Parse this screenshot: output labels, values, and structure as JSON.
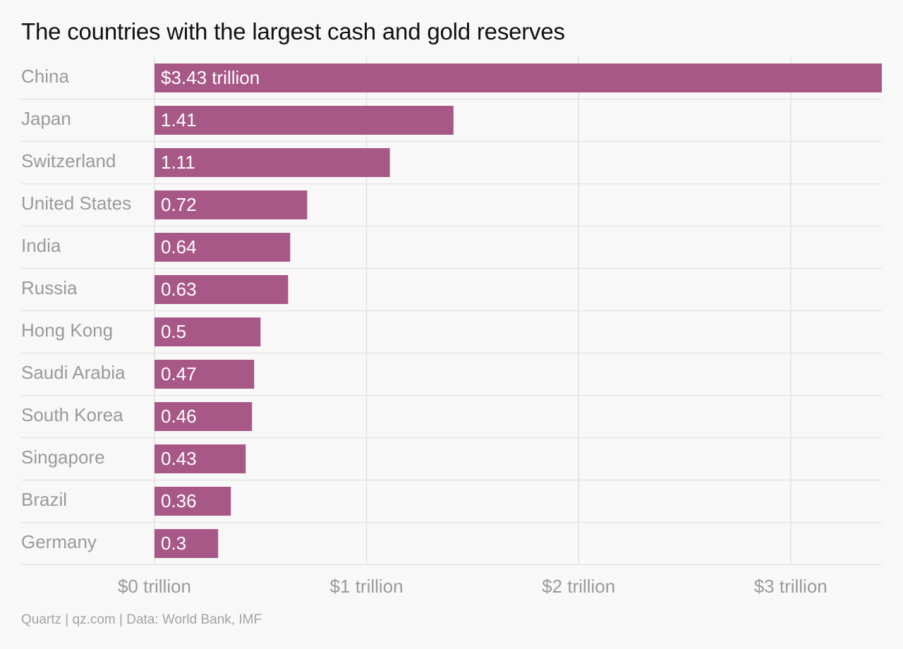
{
  "title": "The countries with the largest cash and gold reserves",
  "source": "Quartz | qz.com | Data: World Bank, IMF",
  "colors": {
    "bar": "#a85887",
    "gridline": "#e0e0e0",
    "separator": "#e6e6e6",
    "background": "#f8f8f8"
  },
  "chart_data": {
    "type": "bar",
    "orientation": "horizontal",
    "title": "The countries with the largest cash and gold reserves",
    "unit": "trillion USD",
    "categories": [
      "China",
      "Japan",
      "Switzerland",
      "United States",
      "India",
      "Russia",
      "Hong Kong",
      "Saudi Arabia",
      "South Korea",
      "Singapore",
      "Brazil",
      "Germany"
    ],
    "values": [
      3.43,
      1.41,
      1.11,
      0.72,
      0.64,
      0.63,
      0.5,
      0.47,
      0.46,
      0.43,
      0.36,
      0.3
    ],
    "value_labels": [
      "$3.43 trillion",
      "1.41",
      "1.11",
      "0.72",
      "0.64",
      "0.63",
      "0.5",
      "0.47",
      "0.46",
      "0.43",
      "0.36",
      "0.3"
    ],
    "xticks": [
      0,
      1,
      2,
      3
    ],
    "xtick_labels": [
      "$0 trillion",
      "$1 trillion",
      "$2 trillion",
      "$3 trillion"
    ],
    "xlim": [
      0,
      3.43
    ],
    "grid": true,
    "legend": "none"
  }
}
